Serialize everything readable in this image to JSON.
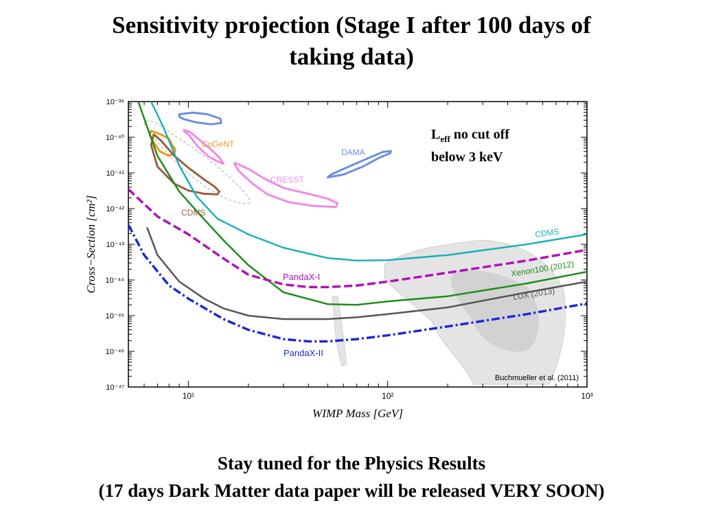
{
  "slide": {
    "title_line1": "Sensitivity projection (Stage I after 100 days of",
    "title_line2": "taking data)",
    "annotation_L": "L",
    "annotation_sub": "eff",
    "annotation_rest": " no cut off",
    "annotation_line2": "below 3 keV",
    "footer_line1": "Stay tuned for the Physics Results",
    "footer_line2": "(17 days Dark Matter data paper will be released VERY SOON)"
  },
  "chart_data": {
    "type": "line",
    "title": "",
    "xlabel": "WIMP Mass [GeV]",
    "ylabel": "Cross−Section [cm²]",
    "xscale": "log",
    "yscale": "log",
    "xlim": [
      5,
      1000
    ],
    "ylim": [
      1e-47,
      1e-39
    ],
    "xticks": [
      10,
      100,
      1000
    ],
    "xtick_labels": [
      "10¹",
      "10²",
      "10³"
    ],
    "yticks": [
      1e-47,
      1e-46,
      1e-45,
      1e-44,
      1e-43,
      1e-42,
      1e-41,
      1e-40,
      1e-39
    ],
    "ytick_labels": [
      "10⁻⁴⁷",
      "10⁻⁴⁶",
      "10⁻⁴⁵",
      "10⁻⁴⁴",
      "10⁻⁴³",
      "10⁻⁴²",
      "10⁻⁴¹",
      "10⁻⁴⁰",
      "10⁻³⁹"
    ],
    "grid": false,
    "credit": "Buchmueller et al. (2011)",
    "series": [
      {
        "name": "CDMS",
        "color": "#1ab0bc",
        "style": "solid",
        "x": [
          6.5,
          7.5,
          9,
          11,
          14,
          20,
          30,
          50,
          70,
          100,
          200,
          500,
          1000
        ],
        "y": [
          1e-39,
          1.9e-40,
          1.6e-41,
          2.2e-42,
          5.2e-43,
          1.9e-43,
          8e-44,
          4.1e-44,
          3.5e-44,
          3.6e-44,
          5e-44,
          1e-43,
          1.9e-43
        ]
      },
      {
        "name": "Xenon100 (2012)",
        "color": "#1f8a1a",
        "style": "solid",
        "x": [
          5.6,
          7,
          9,
          12,
          15,
          20,
          30,
          50,
          70,
          100,
          200,
          500,
          1000
        ],
        "y": [
          1e-39,
          3e-41,
          3e-42,
          5e-43,
          1.3e-43,
          2.6e-44,
          4.5e-45,
          2.1e-45,
          2e-45,
          2.5e-45,
          3.5e-45,
          8e-45,
          1.7e-44
        ]
      },
      {
        "name": "LUX (2013)",
        "color": "#555555",
        "style": "solid",
        "x": [
          6.2,
          7,
          9,
          12,
          15,
          20,
          30,
          50,
          70,
          100,
          200,
          500,
          1000
        ],
        "y": [
          3e-43,
          5e-44,
          9e-45,
          3e-45,
          1.6e-45,
          1e-45,
          8e-46,
          8e-46,
          9e-46,
          1.1e-45,
          1.7e-45,
          4.5e-45,
          9e-45
        ]
      },
      {
        "name": "PandaX-I",
        "color": "#b012b8",
        "style": "dashed",
        "x": [
          5,
          7,
          10,
          15,
          20,
          30,
          40,
          50,
          70,
          100,
          200,
          500,
          1000
        ],
        "y": [
          3.5e-42,
          6e-43,
          1.9e-43,
          4e-44,
          1.4e-44,
          7.5e-45,
          6.3e-45,
          6.3e-45,
          7e-45,
          9e-45,
          1.6e-44,
          3.5e-44,
          7e-44
        ]
      },
      {
        "name": "PandaX-II",
        "color": "#1a2ad6",
        "style": "dashdot",
        "x": [
          5,
          6,
          8,
          10,
          15,
          20,
          30,
          40,
          50,
          70,
          100,
          200,
          500,
          1000
        ],
        "y": [
          3.5e-43,
          5e-44,
          7e-45,
          3e-45,
          8e-46,
          4e-46,
          2.2e-46,
          1.9e-46,
          1.9e-46,
          2.2e-46,
          2.8e-46,
          5e-46,
          1.1e-45,
          2.2e-45
        ]
      }
    ],
    "regions": [
      {
        "name": "CoGeNT",
        "color": "#f0961a",
        "x": [
          6.5,
          7,
          7.5,
          8,
          8.3,
          8.6,
          8.5,
          8,
          7.2,
          6.6,
          6.4,
          6.5
        ],
        "y": [
          1.5e-40,
          1.3e-40,
          1.1e-40,
          9e-41,
          6e-41,
          4.5e-41,
          3.5e-41,
          3e-41,
          4e-41,
          8e-41,
          1.2e-40,
          1.5e-40
        ]
      },
      {
        "name": "DAMA (upper)",
        "color": "#6a8fe0",
        "x": [
          9,
          10.5,
          12.5,
          14.5,
          14.6,
          13,
          11,
          9.5,
          9,
          9
        ],
        "y": [
          4.4e-40,
          4.9e-40,
          4.4e-40,
          3.3e-40,
          2.5e-40,
          2.3e-40,
          2.6e-40,
          3.2e-40,
          3.8e-40,
          4.4e-40
        ]
      },
      {
        "name": "DAMA",
        "color": "#6a8fe0",
        "x": [
          50,
          60,
          75,
          90,
          103,
          104,
          95,
          80,
          62,
          52,
          50
        ],
        "y": [
          7.5e-42,
          9e-42,
          1.5e-41,
          2.6e-41,
          3.6e-41,
          4.1e-41,
          3.9e-41,
          2.6e-41,
          1.4e-41,
          9e-42,
          7.5e-42
        ]
      },
      {
        "name": "CRESST (low)",
        "color": "#f08ae6",
        "x": [
          9.5,
          10,
          11,
          12.5,
          14,
          15,
          14.4,
          13,
          11.5,
          10.2,
          9.5,
          9.5
        ],
        "y": [
          1.5e-40,
          1.2e-40,
          6e-41,
          3e-41,
          2.1e-41,
          1.8e-41,
          2.6e-41,
          4.5e-41,
          8e-41,
          1.4e-40,
          1.6e-40,
          1.5e-40
        ]
      },
      {
        "name": "CRESST",
        "color": "#f08ae6",
        "x": [
          17,
          18,
          21,
          25,
          32,
          42,
          55,
          56,
          50,
          40,
          30,
          24,
          20,
          17.2,
          17
        ],
        "y": [
          1.8e-41,
          1.1e-41,
          5e-42,
          2.5e-42,
          1.5e-42,
          1.2e-42,
          1.1e-42,
          1.4e-42,
          1.9e-42,
          2.6e-42,
          3.8e-42,
          7e-42,
          1.3e-41,
          1.9e-41,
          1.8e-41
        ]
      },
      {
        "name": "CDMS",
        "color": "#9a6040",
        "x": [
          6.5,
          7,
          8.5,
          10,
          12,
          14,
          14.3,
          13.5,
          12,
          10,
          8.5,
          7.3,
          6.7,
          6.5
        ],
        "y": [
          6e-41,
          1.5e-41,
          5e-42,
          3.2e-42,
          2.6e-42,
          2.5e-42,
          3e-42,
          4.2e-42,
          6.5e-42,
          1.4e-41,
          3e-41,
          8e-41,
          1.2e-40,
          6e-41
        ]
      }
    ],
    "limit_labels": [
      "CDMS",
      "Xenon100 (2012)",
      "LUX (2013)",
      "PandaX-I",
      "PandaX-II"
    ],
    "region_labels": [
      "CoGeNT",
      "DAMA",
      "CRESST",
      "CDMS"
    ]
  }
}
